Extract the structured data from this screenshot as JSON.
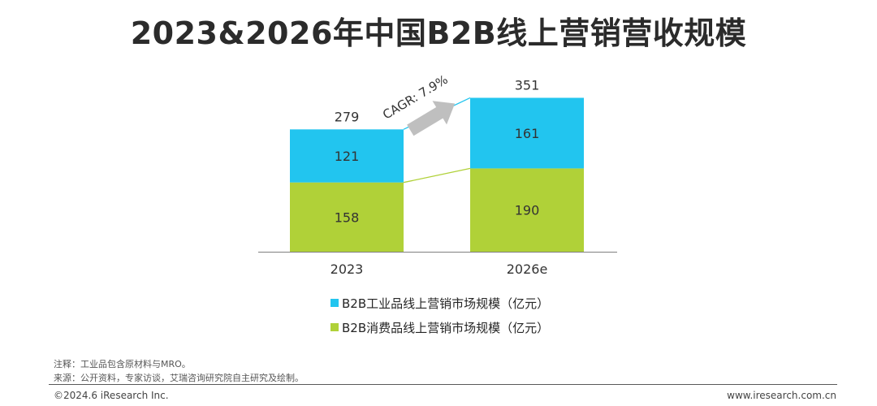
{
  "title": "2023&2026年中国B2B线上营销营收规模",
  "chart_data": {
    "type": "bar",
    "stacked": true,
    "categories": [
      "2023",
      "2026e"
    ],
    "series": [
      {
        "name": "B2B消费品线上营销市场规模（亿元）",
        "values": [
          158,
          190
        ],
        "color": "#b0d138"
      },
      {
        "name": "B2B工业品线上营销市场规模（亿元）",
        "values": [
          121,
          161
        ],
        "color": "#22c5ef"
      }
    ],
    "totals": [
      279,
      351
    ],
    "annotation": "CAGR: 7.9%",
    "ylim": [
      0,
      400
    ],
    "grid": false,
    "legend_position": "bottom",
    "legend_order": [
      {
        "label": "B2B工业品线上营销市场规模（亿元）",
        "color": "#22c5ef"
      },
      {
        "label": "B2B消费品线上营销市场规模（亿元）",
        "color": "#b0d138"
      }
    ]
  },
  "footer": {
    "note": "注释：工业品包含原材料与MRO。",
    "source": "来源：公开资料，专家访谈，艾瑞咨询研究院自主研究及绘制。",
    "copyright": "©2024.6 iResearch Inc.",
    "website": "www.iresearch.com.cn"
  }
}
